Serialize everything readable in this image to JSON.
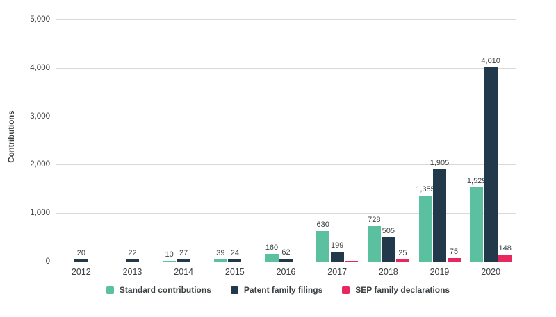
{
  "chart_data": {
    "type": "bar",
    "title": "",
    "xlabel": "",
    "ylabel": "Contributions",
    "ylim": [
      0,
      5000
    ],
    "grid": true,
    "legend_position": "bottom",
    "y_ticks": [
      "0",
      "1,000",
      "2,000",
      "3,000",
      "4,000",
      "5,000"
    ],
    "categories": [
      "2012",
      "2013",
      "2014",
      "2015",
      "2016",
      "2017",
      "2018",
      "2019",
      "2020"
    ],
    "series": [
      {
        "name": "Standard contributions",
        "color": "#5ac0a0",
        "values": [
          null,
          null,
          10,
          39,
          160,
          630,
          728,
          1355,
          1529
        ],
        "labels": [
          "",
          "",
          "10",
          "39",
          "160",
          "630",
          "728",
          "1,355",
          "1,529"
        ]
      },
      {
        "name": "Patent family filings",
        "color": "#21394a",
        "values": [
          20,
          22,
          27,
          24,
          62,
          199,
          505,
          1905,
          4010
        ],
        "labels": [
          "20",
          "22",
          "27",
          "24",
          "62",
          "199",
          "505",
          "1,905",
          "4,010"
        ]
      },
      {
        "name": "SEP family declarations",
        "color": "#e7275d",
        "values": [
          null,
          null,
          null,
          null,
          null,
          2,
          25,
          75,
          148
        ],
        "labels": [
          "",
          "",
          "",
          "",
          "",
          "",
          "25",
          "75",
          "148"
        ]
      }
    ]
  }
}
